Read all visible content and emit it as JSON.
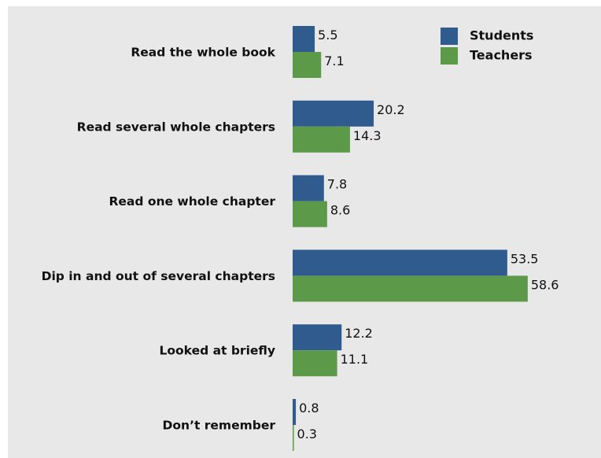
{
  "chart_data": {
    "type": "bar",
    "orientation": "horizontal",
    "categories": [
      "Read the whole book",
      "Read several whole chapters",
      "Read one whole chapter",
      "Dip in and out of several chapters",
      "Looked at briefly",
      "Don’t remember"
    ],
    "series": [
      {
        "name": "Students",
        "color": "#2f5b8f",
        "values": [
          5.5,
          20.2,
          7.8,
          53.5,
          12.2,
          0.8
        ]
      },
      {
        "name": "Teachers",
        "color": "#5c9a49",
        "values": [
          7.1,
          14.3,
          8.6,
          58.6,
          11.1,
          0.3
        ]
      }
    ],
    "legend": "top-right"
  }
}
